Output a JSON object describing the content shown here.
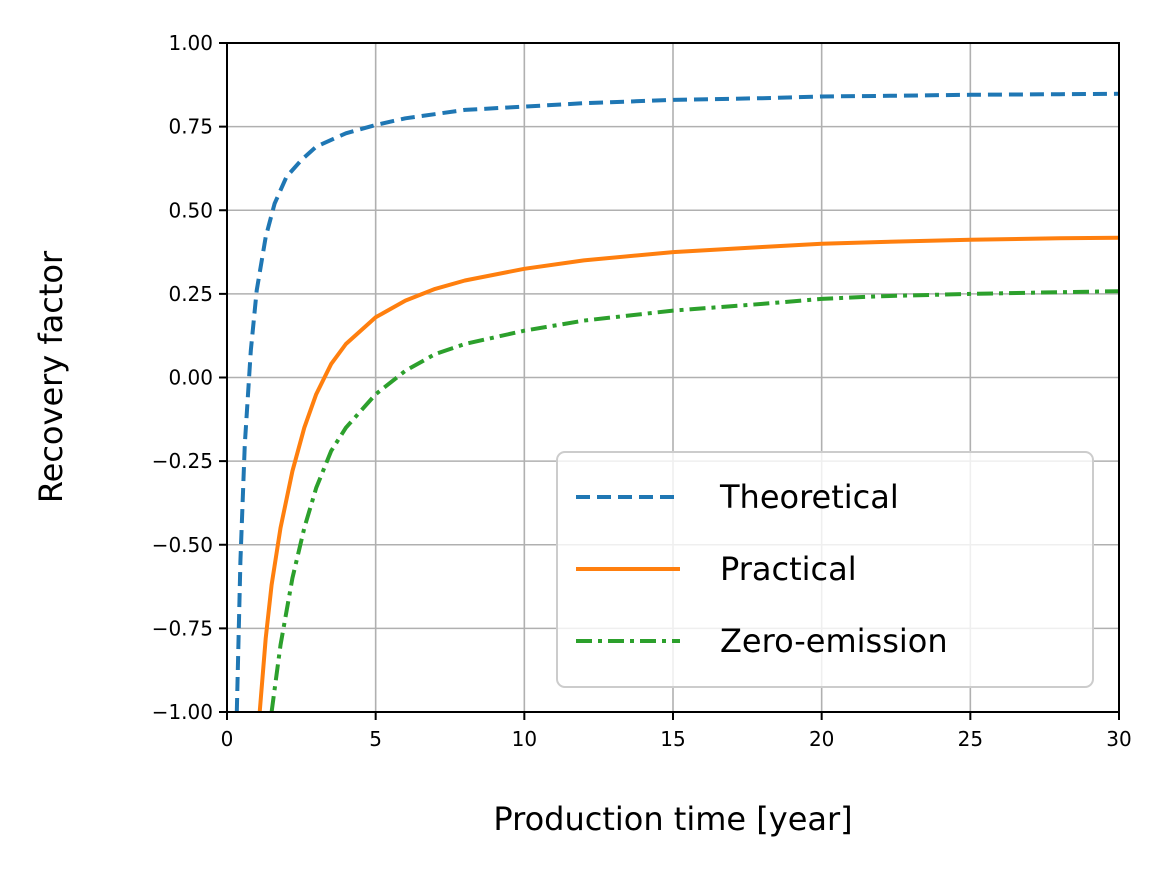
{
  "chart_data": {
    "type": "line",
    "title": "",
    "xlabel": "Production time [year]",
    "ylabel": "Recovery factor",
    "xlim": [
      0,
      30
    ],
    "ylim": [
      -1.0,
      1.0
    ],
    "grid": true,
    "legend_position": "lower-right",
    "x_ticks": [
      {
        "value": 0,
        "label": "0"
      },
      {
        "value": 5,
        "label": "5"
      },
      {
        "value": 10,
        "label": "10"
      },
      {
        "value": 15,
        "label": "15"
      },
      {
        "value": 20,
        "label": "20"
      },
      {
        "value": 25,
        "label": "25"
      },
      {
        "value": 30,
        "label": "30"
      }
    ],
    "y_ticks": [
      {
        "value": 1.0,
        "label": "1.00"
      },
      {
        "value": 0.75,
        "label": "0.75"
      },
      {
        "value": 0.5,
        "label": "0.50"
      },
      {
        "value": 0.25,
        "label": "0.25"
      },
      {
        "value": 0.0,
        "label": "0.00"
      },
      {
        "value": -0.25,
        "label": "−0.25"
      },
      {
        "value": -0.5,
        "label": "−0.50"
      },
      {
        "value": -0.75,
        "label": "−0.75"
      },
      {
        "value": -1.0,
        "label": "−1.00"
      }
    ],
    "series": [
      {
        "name": "Theoretical",
        "color": "#1f77b4",
        "style": "dashed",
        "x": [
          0.33,
          0.45,
          0.6,
          0.8,
          1.0,
          1.3,
          1.6,
          2.0,
          2.5,
          3.0,
          4.0,
          5.0,
          6.0,
          8.0,
          10,
          12,
          15,
          18,
          20,
          22,
          25,
          28,
          30
        ],
        "y": [
          -1.0,
          -0.55,
          -0.2,
          0.08,
          0.26,
          0.42,
          0.52,
          0.6,
          0.65,
          0.69,
          0.73,
          0.755,
          0.775,
          0.8,
          0.81,
          0.82,
          0.83,
          0.835,
          0.84,
          0.842,
          0.845,
          0.847,
          0.848
        ]
      },
      {
        "name": "Practical",
        "color": "#ff7f0e",
        "style": "solid",
        "x": [
          1.1,
          1.3,
          1.5,
          1.8,
          2.2,
          2.6,
          3.0,
          3.5,
          4.0,
          5.0,
          6.0,
          7.0,
          8.0,
          10,
          12,
          15,
          18,
          20,
          22,
          25,
          28,
          30
        ],
        "y": [
          -1.0,
          -0.78,
          -0.62,
          -0.45,
          -0.28,
          -0.15,
          -0.05,
          0.04,
          0.1,
          0.18,
          0.23,
          0.265,
          0.29,
          0.325,
          0.35,
          0.375,
          0.39,
          0.4,
          0.405,
          0.412,
          0.416,
          0.418
        ]
      },
      {
        "name": "Zero-emission",
        "color": "#2ca02c",
        "style": "dashdot",
        "x": [
          1.5,
          1.8,
          2.2,
          2.6,
          3.0,
          3.5,
          4.0,
          4.5,
          5.0,
          6.0,
          7.0,
          8.0,
          10,
          12,
          15,
          18,
          20,
          22,
          25,
          28,
          30
        ],
        "y": [
          -1.0,
          -0.8,
          -0.6,
          -0.45,
          -0.33,
          -0.22,
          -0.15,
          -0.1,
          -0.05,
          0.02,
          0.07,
          0.1,
          0.14,
          0.17,
          0.2,
          0.22,
          0.235,
          0.243,
          0.25,
          0.255,
          0.258
        ]
      }
    ]
  }
}
